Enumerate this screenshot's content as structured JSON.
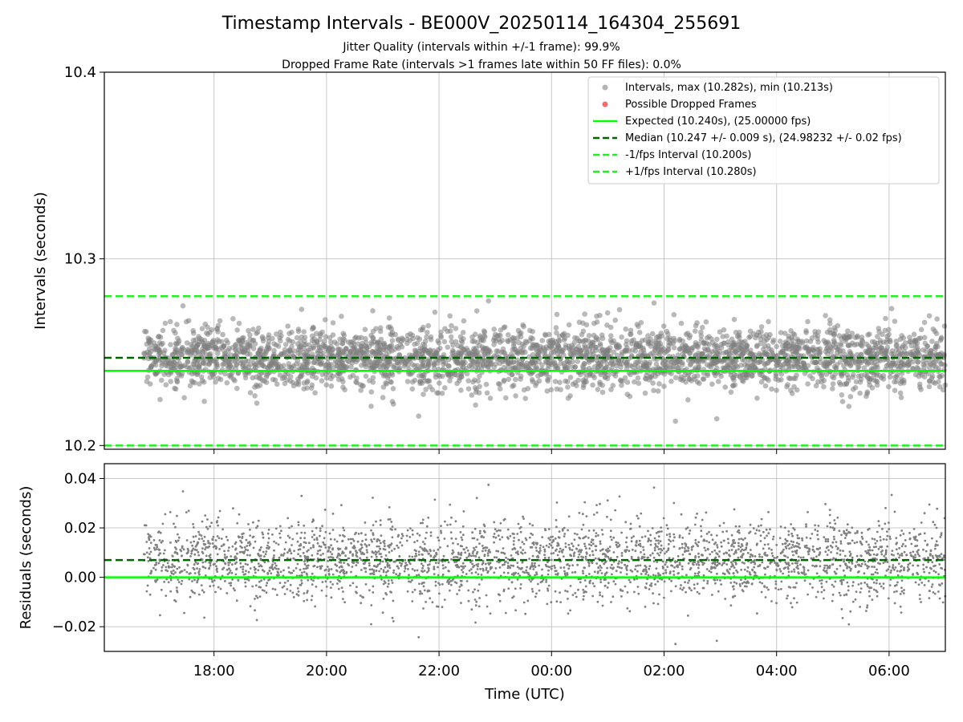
{
  "chart_data": [
    {
      "type": "scatter",
      "panel": "top",
      "title": "Timestamp Intervals - BE000V_20250114_164304_255691",
      "subtitle_1": "Jitter Quality (intervals within +/-1 frame): 99.9%",
      "subtitle_2": "Dropped Frame Rate (intervals >1 frames late within 50 FF files): 0.0%",
      "xlabel": "",
      "ylabel": "Intervals (seconds)",
      "xlim": [
        -7.95,
        7.0
      ],
      "ylim": [
        10.198,
        10.4
      ],
      "yticks": [
        10.2,
        10.3,
        10.4
      ],
      "ytick_labels": [
        "10.2",
        "10.3",
        "10.4"
      ],
      "grid": true,
      "legend_placement": "top-right",
      "legend": [
        "Intervals, max (10.282s), min (10.213s)",
        "Possible Dropped Frames",
        "Expected (10.240s), (25.00000 fps)",
        "Median (10.247 +/- 0.009 s), (24.98232 +/- 0.02 fps)",
        "-1/fps Interval (10.200s)",
        "+1/fps Interval (10.280s)"
      ],
      "lines": {
        "expected": 10.24,
        "median": 10.247,
        "minus_one_fps": 10.2,
        "plus_one_fps": 10.28
      },
      "series": [
        {
          "name": "Intervals, max (10.282s), min (10.213s)",
          "x_range": [
            -7.25,
            7.0
          ],
          "center": 10.247,
          "std": 0.009,
          "max": 10.282,
          "min": 10.213
        },
        {
          "name": "Possible Dropped Frames",
          "values": []
        }
      ]
    },
    {
      "type": "scatter",
      "panel": "bottom",
      "xlabel": "Time (UTC)",
      "ylabel": "Residuals (seconds)",
      "xlim": [
        -7.95,
        7.0
      ],
      "ylim": [
        -0.03,
        0.046
      ],
      "yticks": [
        -0.02,
        0.0,
        0.02,
        0.04
      ],
      "ytick_labels": [
        "−0.02",
        "0.00",
        "0.02",
        "0.04"
      ],
      "xticks": [
        -6,
        -4,
        -2,
        0,
        2,
        4,
        6
      ],
      "xtick_labels": [
        "18:00",
        "20:00",
        "22:00",
        "00:00",
        "02:00",
        "04:00",
        "06:00"
      ],
      "grid": true,
      "lines": {
        "zero": 0.0,
        "median": 0.007
      },
      "series": [
        {
          "name": "Residuals",
          "x_range": [
            -7.25,
            7.0
          ],
          "center": 0.007,
          "std": 0.009,
          "max": 0.042,
          "min": -0.027
        }
      ]
    }
  ],
  "colors": {
    "points": "#808080",
    "dropped": "#f05050",
    "expected": "#00ff00",
    "median": "#006400",
    "fps_interval": "#22ee22",
    "grid": "#b0b0b0"
  }
}
